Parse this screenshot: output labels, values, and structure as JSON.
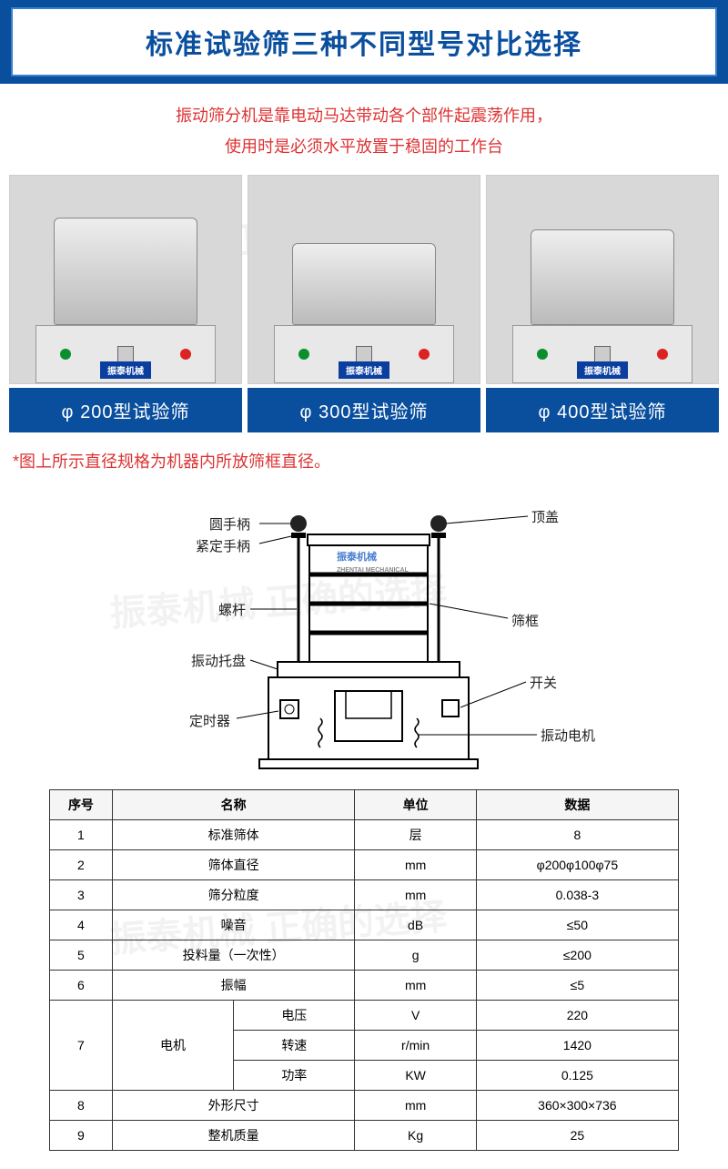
{
  "header": {
    "title": "标准试验筛三种不同型号对比选择"
  },
  "subtitle": {
    "line1": "振动筛分机是靠电动马达带动各个部件起震荡作用，",
    "line2": "使用时是必须水平放置于稳固的工作台"
  },
  "products": [
    {
      "label": "φ 200型试验筛",
      "stack_h": 118,
      "brand": "振泰机械"
    },
    {
      "label": "φ 300型试验筛",
      "stack_h": 90,
      "brand": "振泰机械"
    },
    {
      "label": "φ 400型试验筛",
      "stack_h": 105,
      "brand": "振泰机械"
    }
  ],
  "footnote": "*图上所示直径规格为机器内所放筛框直径。",
  "diagram": {
    "labels": {
      "top_cover": "顶盖",
      "round_handle": "圆手柄",
      "lock_handle": "紧定手柄",
      "screw_rod": "螺杆",
      "vib_tray": "振动托盘",
      "timer": "定时器",
      "sieve_frame": "筛框",
      "switch": "开关",
      "vib_motor": "振动电机"
    },
    "logo_small": "振泰机械",
    "logo_sub": "ZHENTAI MECHANICAL"
  },
  "spec": {
    "columns": [
      "序号",
      "名称",
      "单位",
      "数据"
    ],
    "rows": [
      {
        "idx": "1",
        "name": [
          "标准筛体"
        ],
        "unit": "层",
        "data": "8"
      },
      {
        "idx": "2",
        "name": [
          "筛体直径"
        ],
        "unit": "mm",
        "data": "φ200φ100φ75"
      },
      {
        "idx": "3",
        "name": [
          "筛分粒度"
        ],
        "unit": "mm",
        "data": "0.038-3"
      },
      {
        "idx": "4",
        "name": [
          "噪音"
        ],
        "unit": "dB",
        "data": "≤50"
      },
      {
        "idx": "5",
        "name": [
          "投料量（一次性）"
        ],
        "unit": "g",
        "data": "≤200"
      },
      {
        "idx": "6",
        "name": [
          "振幅"
        ],
        "unit": "mm",
        "data": "≤5"
      },
      {
        "idx": "7",
        "group": "电机",
        "sub": [
          {
            "sub_name": "电压",
            "unit": "V",
            "data": "220"
          },
          {
            "sub_name": "转速",
            "unit": "r/min",
            "data": "1420"
          },
          {
            "sub_name": "功率",
            "unit": "KW",
            "data": "0.125"
          }
        ]
      },
      {
        "idx": "8",
        "name": [
          "外形尺寸"
        ],
        "unit": "mm",
        "data": "360×300×736"
      },
      {
        "idx": "9",
        "name": [
          "整机质量"
        ],
        "unit": "Kg",
        "data": "25"
      }
    ]
  },
  "colors": {
    "brand_blue": "#0a4f9e",
    "red_text": "#d33"
  }
}
